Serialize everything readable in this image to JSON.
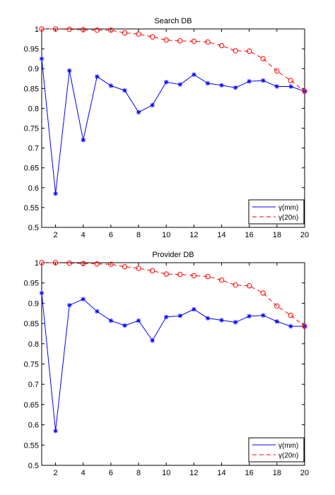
{
  "chart_data": [
    {
      "type": "line",
      "title": "Search DB",
      "xlabel": "",
      "ylabel": "",
      "xlim": [
        1,
        20
      ],
      "ylim": [
        0.5,
        1
      ],
      "xticks": [
        2,
        4,
        6,
        8,
        10,
        12,
        14,
        16,
        18,
        20
      ],
      "yticks": [
        0.5,
        0.55,
        0.6,
        0.65,
        0.7,
        0.75,
        0.8,
        0.85,
        0.9,
        0.95,
        1
      ],
      "grid": false,
      "legend_position": "bottom-right",
      "series": [
        {
          "name": "γ(mm)",
          "color": "#0000ff",
          "dash": "solid",
          "marker": "star",
          "x": [
            1,
            2,
            3,
            4,
            5,
            6,
            7,
            8,
            9,
            10,
            11,
            12,
            13,
            14,
            15,
            16,
            17,
            18,
            19,
            20
          ],
          "y": [
            0.925,
            0.585,
            0.895,
            0.72,
            0.88,
            0.857,
            0.845,
            0.79,
            0.808,
            0.866,
            0.86,
            0.885,
            0.863,
            0.858,
            0.852,
            0.868,
            0.87,
            0.855,
            0.855,
            0.843
          ]
        },
        {
          "name": "γ(20n)",
          "color": "#ff0000",
          "dash": "dashed",
          "marker": "circle",
          "x": [
            1,
            2,
            3,
            4,
            5,
            6,
            7,
            8,
            9,
            10,
            11,
            12,
            13,
            14,
            15,
            16,
            17,
            18,
            19,
            20
          ],
          "y": [
            1.0,
            1.0,
            0.999,
            0.998,
            0.997,
            0.997,
            0.99,
            0.987,
            0.98,
            0.972,
            0.97,
            0.969,
            0.967,
            0.958,
            0.945,
            0.944,
            0.925,
            0.894,
            0.87,
            0.843
          ]
        }
      ]
    },
    {
      "type": "line",
      "title": "Provider DB",
      "xlabel": "",
      "ylabel": "",
      "xlim": [
        1,
        20
      ],
      "ylim": [
        0.5,
        1
      ],
      "xticks": [
        2,
        4,
        6,
        8,
        10,
        12,
        14,
        16,
        18,
        20
      ],
      "yticks": [
        0.5,
        0.55,
        0.6,
        0.65,
        0.7,
        0.75,
        0.8,
        0.85,
        0.9,
        0.95,
        1
      ],
      "grid": false,
      "legend_position": "bottom-right",
      "series": [
        {
          "name": "γ(mm)",
          "color": "#0000ff",
          "dash": "solid",
          "marker": "star",
          "x": [
            1,
            2,
            3,
            4,
            5,
            6,
            7,
            8,
            9,
            10,
            11,
            12,
            13,
            14,
            15,
            16,
            17,
            18,
            19,
            20
          ],
          "y": [
            0.925,
            0.585,
            0.895,
            0.91,
            0.88,
            0.857,
            0.845,
            0.857,
            0.808,
            0.866,
            0.869,
            0.885,
            0.863,
            0.858,
            0.853,
            0.868,
            0.87,
            0.855,
            0.843,
            0.843
          ]
        },
        {
          "name": "γ(20n)",
          "color": "#ff0000",
          "dash": "dashed",
          "marker": "circle",
          "x": [
            1,
            2,
            3,
            4,
            5,
            6,
            7,
            8,
            9,
            10,
            11,
            12,
            13,
            14,
            15,
            16,
            17,
            18,
            19,
            20
          ],
          "y": [
            1.0,
            1.0,
            0.999,
            0.998,
            0.997,
            0.996,
            0.99,
            0.986,
            0.98,
            0.972,
            0.971,
            0.968,
            0.966,
            0.957,
            0.945,
            0.943,
            0.925,
            0.893,
            0.87,
            0.843
          ]
        }
      ]
    }
  ]
}
